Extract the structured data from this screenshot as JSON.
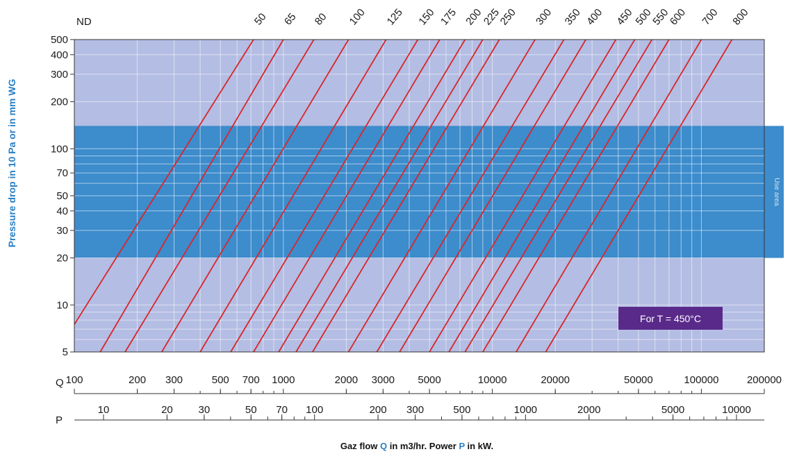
{
  "chart_data": {
    "type": "line",
    "title": "Gaz flow Q in m3/hr. Power P in kW.",
    "title_parts": {
      "prefix": "Gaz flow ",
      "q": "Q",
      "q_text": " in m3/hr. Power ",
      "p": "P",
      "p_text": " in kW."
    },
    "ylabel": "Pressure drop in 10 Pa or in mm WG",
    "y_scale": "log",
    "ylim": [
      5,
      500
    ],
    "y_ticks": [
      5,
      10,
      20,
      30,
      40,
      50,
      70,
      100,
      200,
      300,
      400,
      500
    ],
    "x_scale": "log",
    "xlim": [
      100,
      200000
    ],
    "q_axis": {
      "label": "Q",
      "ticks": [
        100,
        200,
        300,
        500,
        700,
        1000,
        2000,
        3000,
        5000,
        10000,
        20000,
        50000,
        100000,
        200000
      ]
    },
    "p_axis": {
      "label": "P",
      "ticks": [
        10,
        20,
        30,
        50,
        70,
        100,
        200,
        300,
        500,
        1000,
        2000,
        5000,
        10000
      ]
    },
    "series_label": "ND",
    "series": [
      {
        "name": "50",
        "x": [
          100,
          720
        ],
        "y": [
          7.5,
          500
        ]
      },
      {
        "name": "65",
        "x": [
          133,
          1000
        ],
        "y": [
          5,
          500
        ]
      },
      {
        "name": "80",
        "x": [
          175,
          1400
        ],
        "y": [
          5,
          500
        ]
      },
      {
        "name": "100",
        "x": [
          262,
          2050
        ],
        "y": [
          5,
          500
        ]
      },
      {
        "name": "125",
        "x": [
          400,
          3100
        ],
        "y": [
          5,
          500
        ]
      },
      {
        "name": "150",
        "x": [
          560,
          4400
        ],
        "y": [
          5,
          500
        ]
      },
      {
        "name": "175",
        "x": [
          720,
          5600
        ],
        "y": [
          5,
          500
        ]
      },
      {
        "name": "200",
        "x": [
          950,
          7400
        ],
        "y": [
          5,
          500
        ]
      },
      {
        "name": "225",
        "x": [
          1150,
          9000
        ],
        "y": [
          5,
          500
        ]
      },
      {
        "name": "250",
        "x": [
          1380,
          10800
        ],
        "y": [
          5,
          500
        ]
      },
      {
        "name": "300",
        "x": [
          2050,
          16000
        ],
        "y": [
          5,
          500
        ]
      },
      {
        "name": "350",
        "x": [
          2800,
          22000
        ],
        "y": [
          5,
          500
        ]
      },
      {
        "name": "400",
        "x": [
          3600,
          28000
        ],
        "y": [
          5,
          500
        ]
      },
      {
        "name": "450",
        "x": [
          5000,
          39000
        ],
        "y": [
          5,
          500
        ]
      },
      {
        "name": "500",
        "x": [
          6200,
          48000
        ],
        "y": [
          5,
          500
        ]
      },
      {
        "name": "550",
        "x": [
          7400,
          58000
        ],
        "y": [
          5,
          500
        ]
      },
      {
        "name": "600",
        "x": [
          9000,
          70000
        ],
        "y": [
          5,
          500
        ]
      },
      {
        "name": "700",
        "x": [
          13000,
          100000
        ],
        "y": [
          5,
          500
        ]
      },
      {
        "name": "800",
        "x": [
          18000,
          140000
        ],
        "y": [
          5,
          500
        ]
      }
    ],
    "use_area": {
      "label": "Use area",
      "y_range": [
        20,
        140
      ]
    },
    "annotation": "For T = 450°C",
    "grid": true,
    "colors": {
      "plot_bg": "#b4bde3",
      "use_area": "#3d8ccc",
      "line": "#d8262b",
      "annotation_bg": "#5a2a8a",
      "ylabel": "#2a7fc4"
    }
  }
}
